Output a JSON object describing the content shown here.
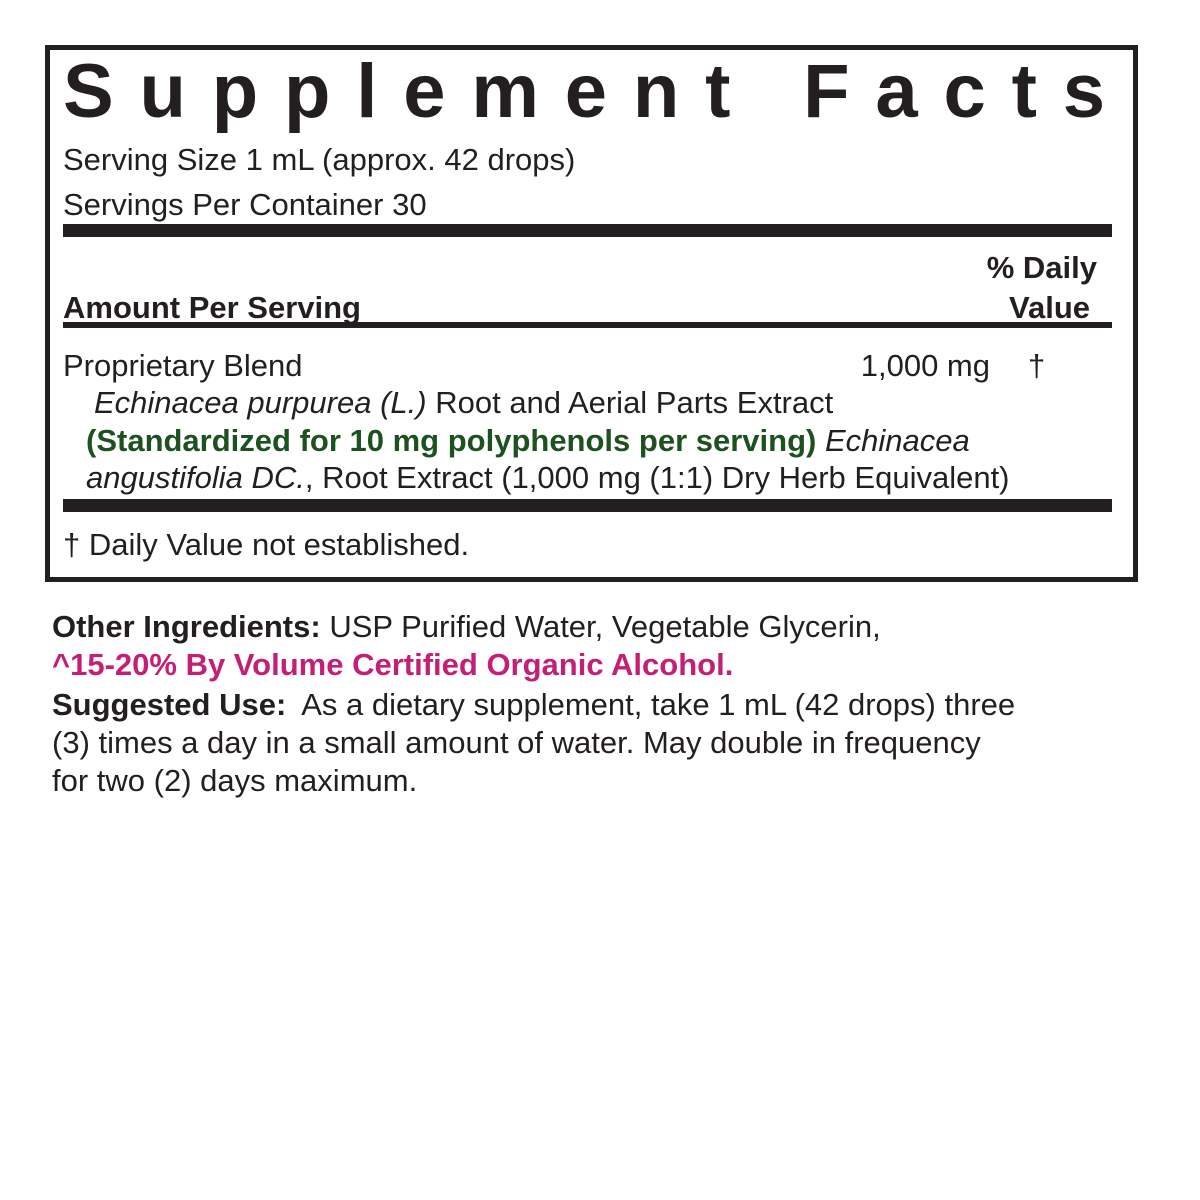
{
  "header": {
    "title": "Supplement Facts"
  },
  "serving": {
    "size": "Serving Size 1 mL (approx. 42 drops)",
    "per_container": "Servings Per Container 30"
  },
  "columns": {
    "amount": "Amount Per Serving",
    "daily_value": [
      "% Daily",
      "Value"
    ]
  },
  "blend": {
    "name": "Proprietary Blend",
    "amount": "1,000 mg",
    "daily_value": "†",
    "lines": [
      [
        "Echinacea purpurea (L.)",
        "Root and Aerial Parts Extract"
      ],
      [
        "(Standardized for 10 mg polyphenols per serving)",
        "Echinacea"
      ],
      [
        "angustifolia DC.",
        ", Root Extract (1,000 mg (1:1) Dry Herb Equivalent)"
      ]
    ]
  },
  "footnote": "† Daily Value not established.",
  "other_ingredients": {
    "label": "Other Ingredients:",
    "text": "USP Purified Water, Vegetable Glycerin,",
    "alcohol": "^15-20% By Volume Certified Organic Alcohol."
  },
  "suggested_use": {
    "label": "Suggested Use:",
    "lines": [
      "As a dietary supplement, take 1 mL (42 drops) three",
      "(3) times a day in a small amount of water. May double in frequency",
      "for two (2) days maximum."
    ]
  }
}
